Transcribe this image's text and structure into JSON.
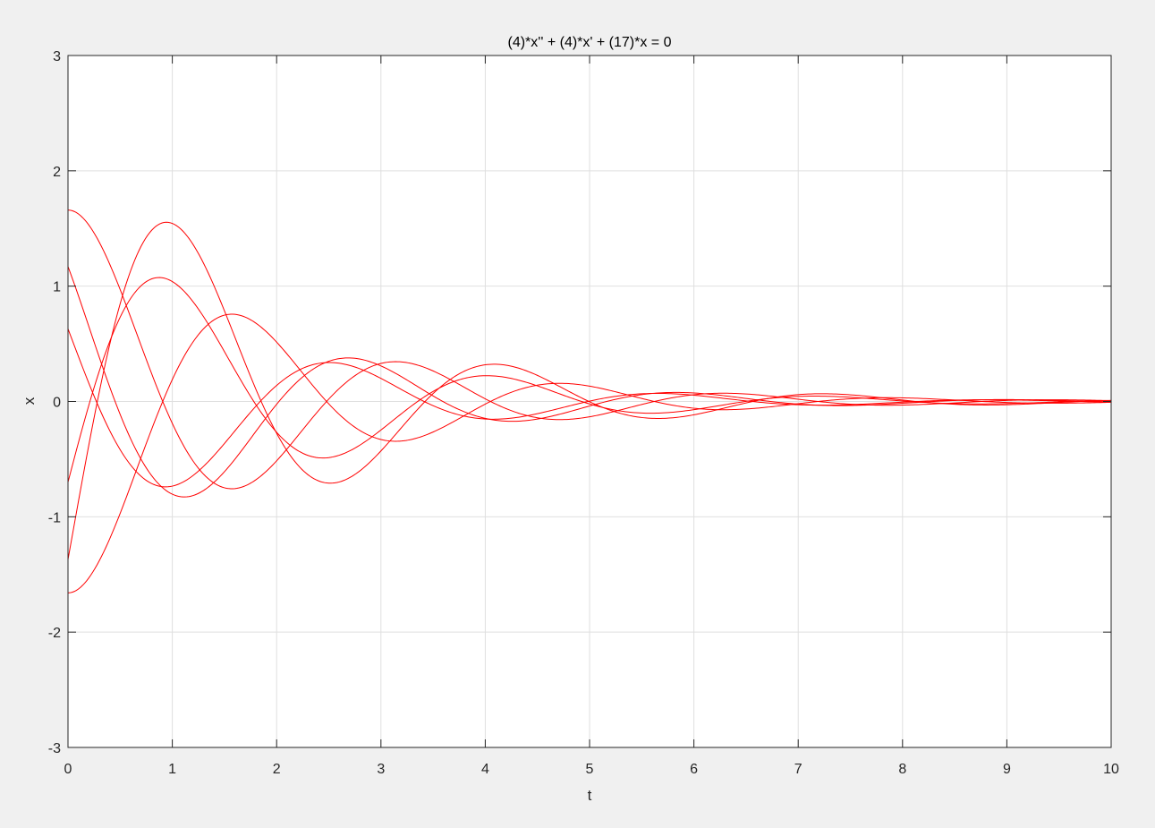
{
  "window": {
    "background": "#f0f0f0"
  },
  "chart_data": {
    "type": "line",
    "title": "(4)*x'' + (4)*x' + (17)*x = 0",
    "xlabel": "t",
    "ylabel": "x",
    "xlim": [
      0,
      10
    ],
    "ylim": [
      -3,
      3
    ],
    "xticks": [
      0,
      1,
      2,
      3,
      4,
      5,
      6,
      7,
      8,
      9,
      10
    ],
    "yticks": [
      -3,
      -2,
      -1,
      0,
      1,
      2,
      3
    ],
    "xtick_labels": [
      "0",
      "1",
      "2",
      "3",
      "4",
      "5",
      "6",
      "7",
      "8",
      "9",
      "10"
    ],
    "ytick_labels": [
      "-3",
      "-2",
      "-1",
      "0",
      "1",
      "2",
      "3"
    ],
    "grid": true,
    "line_color": "#ff0000",
    "grid_color": "#dfdfdf",
    "axis_color": "#262626",
    "equation": {
      "a": 4,
      "b": 4,
      "c": 17
    },
    "t_step": 0.02,
    "series": [
      {
        "x0": 1.66,
        "v0": 0.0
      },
      {
        "x0": 1.17,
        "v0": -2.43
      },
      {
        "x0": 0.63,
        "v0": -2.4
      },
      {
        "x0": -0.7,
        "v0": 3.48
      },
      {
        "x0": -1.37,
        "v0": 5.03
      },
      {
        "x0": -1.66,
        "v0": 0.0
      }
    ]
  }
}
